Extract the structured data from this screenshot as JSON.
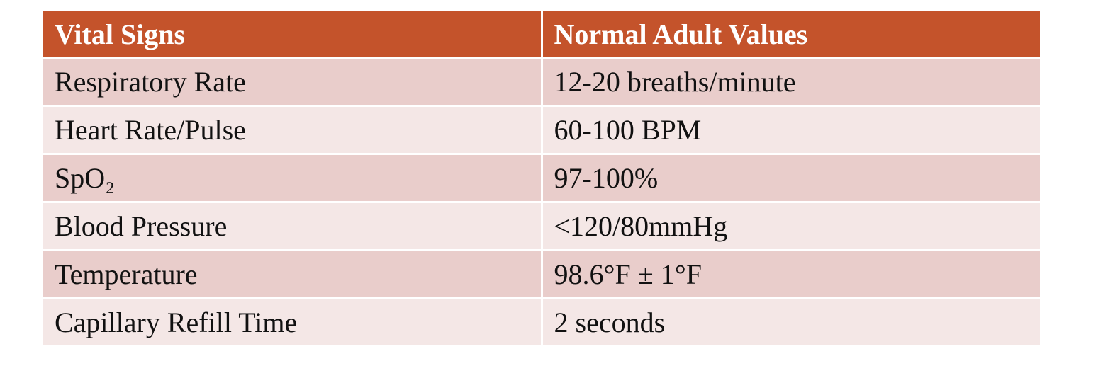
{
  "table": {
    "header": [
      "Vital Signs",
      "Normal Adult Values"
    ],
    "rows": [
      [
        "Respiratory Rate",
        "12-20 breaths/minute"
      ],
      [
        "Heart Rate/Pulse",
        "60-100 BPM"
      ],
      [
        "SpO₂",
        "97-100%"
      ],
      [
        "Blood Pressure",
        "<120/80mmHg"
      ],
      [
        "Temperature",
        "98.6°F ± 1°F"
      ],
      [
        "Capillary Refill Time",
        "2 seconds"
      ]
    ]
  }
}
